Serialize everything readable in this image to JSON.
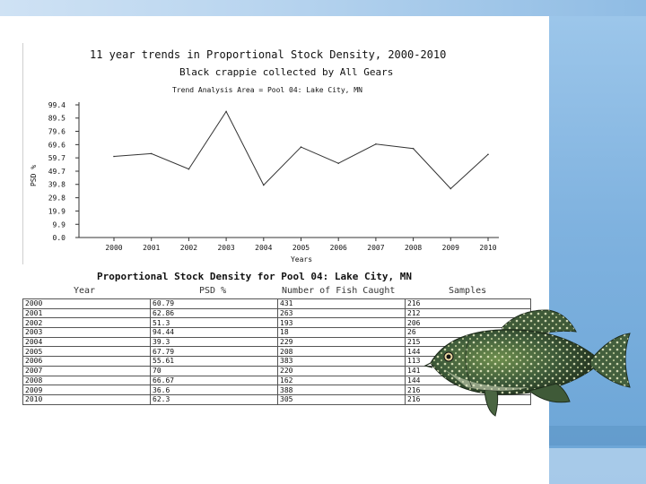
{
  "slide": {
    "accent_color": "#7fb2df"
  },
  "chart_data": {
    "type": "line",
    "title": "11 year trends in Proportional Stock Density, 2000-2010",
    "subtitle": "Black crappie collected by All Gears",
    "subtitle2": "Trend Analysis Area = Pool 04: Lake City, MN",
    "xlabel": "Years",
    "ylabel": "PSD %",
    "x": [
      2000,
      2001,
      2002,
      2003,
      2004,
      2005,
      2006,
      2007,
      2008,
      2009,
      2010
    ],
    "y_ticks": [
      "0.0",
      "9.9",
      "19.9",
      "29.8",
      "39.8",
      "49.7",
      "59.7",
      "69.6",
      "79.6",
      "89.5",
      "99.4"
    ],
    "ylim": [
      0,
      99.4
    ],
    "series": [
      {
        "values": [
          60.79,
          62.86,
          51.3,
          94.44,
          39.3,
          67.79,
          55.61,
          70,
          66.67,
          36.6,
          62.3
        ]
      }
    ],
    "line_color": "#333333",
    "grid": false
  },
  "table": {
    "title": "Proportional Stock Density for Pool 04: Lake City, MN",
    "headers": [
      "Year",
      "PSD %",
      "Number of Fish Caught",
      "Samples"
    ],
    "rows": [
      [
        "2000",
        "60.79",
        "431",
        "216"
      ],
      [
        "2001",
        "62.86",
        "263",
        "212"
      ],
      [
        "2002",
        "51.3",
        "193",
        "206"
      ],
      [
        "2003",
        "94.44",
        "18",
        "26"
      ],
      [
        "2004",
        "39.3",
        "229",
        "215"
      ],
      [
        "2005",
        "67.79",
        "208",
        "144"
      ],
      [
        "2006",
        "55.61",
        "383",
        "113"
      ],
      [
        "2007",
        "70",
        "220",
        "141"
      ],
      [
        "2008",
        "66.67",
        "162",
        "144"
      ],
      [
        "2009",
        "36.6",
        "388",
        "216"
      ],
      [
        "2010",
        "62.3",
        "305",
        "216"
      ]
    ]
  },
  "image": {
    "icon": "crappie-fish-illustration"
  }
}
